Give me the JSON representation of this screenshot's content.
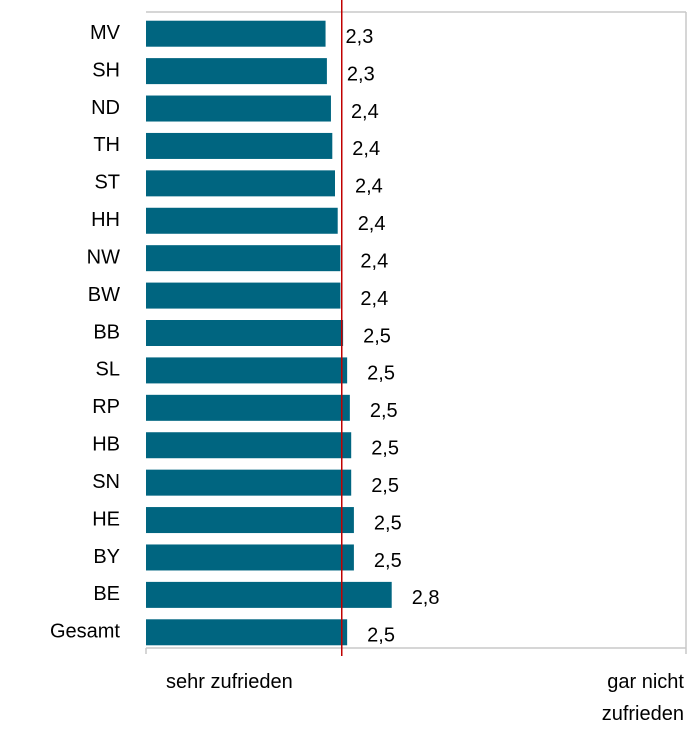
{
  "chart_data": {
    "type": "bar",
    "orientation": "horizontal",
    "categories": [
      "MV",
      "SH",
      "ND",
      "TH",
      "ST",
      "HH",
      "NW",
      "BW",
      "BB",
      "SL",
      "RP",
      "HB",
      "SN",
      "HE",
      "BY",
      "BE",
      "Gesamt"
    ],
    "values": [
      2.33,
      2.34,
      2.37,
      2.38,
      2.4,
      2.42,
      2.44,
      2.44,
      2.46,
      2.49,
      2.51,
      2.52,
      2.52,
      2.54,
      2.54,
      2.82,
      2.49
    ],
    "value_labels": [
      "2,3",
      "2,3",
      "2,4",
      "2,4",
      "2,4",
      "2,4",
      "2,4",
      "2,4",
      "2,5",
      "2,5",
      "2,5",
      "2,5",
      "2,5",
      "2,5",
      "2,5",
      "2,8",
      "2,5"
    ],
    "color": "#006580",
    "reference_line": {
      "value": 2.45,
      "color": "#c00000"
    },
    "xlim": [
      1,
      5
    ],
    "xticks": [
      {
        "value": 1,
        "label": "sehr zufrieden"
      },
      {
        "value": 5,
        "label": "gar nicht zufrieden"
      }
    ]
  }
}
